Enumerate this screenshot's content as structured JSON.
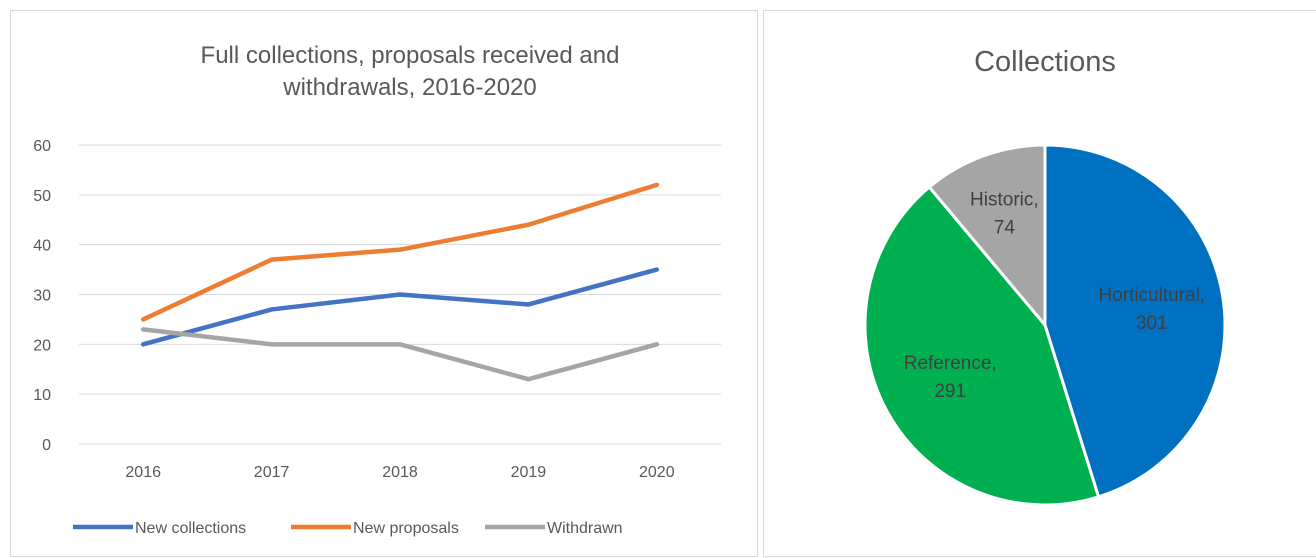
{
  "chart_data": [
    {
      "type": "line",
      "title": [
        "Full collections, proposals received and",
        "withdrawals, 2016-2020"
      ],
      "categories": [
        "2016",
        "2017",
        "2018",
        "2019",
        "2020"
      ],
      "ylim": [
        0,
        60
      ],
      "yticks": [
        "0",
        "10",
        "20",
        "30",
        "40",
        "50",
        "60"
      ],
      "grid": true,
      "legend_position": "bottom",
      "series": [
        {
          "name": "New collections",
          "values": [
            20,
            27,
            30,
            28,
            35
          ],
          "color": "#4472c4"
        },
        {
          "name": "New proposals",
          "values": [
            25,
            37,
            39,
            44,
            52
          ],
          "color": "#ed7d31"
        },
        {
          "name": "Withdrawn",
          "values": [
            23,
            20,
            20,
            13,
            20
          ],
          "color": "#a5a5a5"
        }
      ]
    },
    {
      "type": "pie",
      "title": "Collections",
      "slices": [
        {
          "label": "Horticultural",
          "value": 301,
          "color": "#0070c0",
          "text": [
            "Horticultural,",
            "301"
          ]
        },
        {
          "label": "Reference",
          "value": 291,
          "color": "#00b050",
          "text": [
            "Reference,",
            "291"
          ]
        },
        {
          "label": "Historic",
          "value": 74,
          "color": "#a5a5a5",
          "text": [
            "Historic,",
            "74"
          ]
        }
      ]
    }
  ]
}
